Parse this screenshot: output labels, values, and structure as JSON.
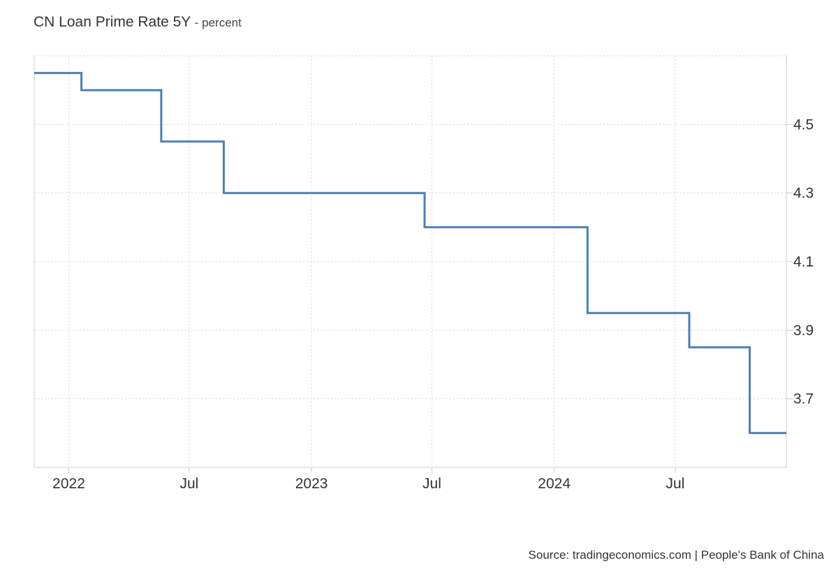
{
  "chart_data": {
    "type": "line",
    "step": true,
    "title": "CN Loan Prime Rate 5Y",
    "subtitle": "- percent",
    "xlabel": "",
    "ylabel": "",
    "x_ticks": [
      {
        "label": "2022",
        "date": "2022-01-01"
      },
      {
        "label": "Jul",
        "date": "2022-07-01"
      },
      {
        "label": "2023",
        "date": "2023-01-01"
      },
      {
        "label": "Jul",
        "date": "2023-07-01"
      },
      {
        "label": "2024",
        "date": "2024-01-01"
      },
      {
        "label": "Jul",
        "date": "2024-07-01"
      }
    ],
    "y_ticks": [
      3.7,
      3.9,
      4.1,
      4.3,
      4.5
    ],
    "xlim": [
      "2021-11-10",
      "2024-12-15"
    ],
    "ylim": [
      3.5,
      4.7
    ],
    "y_axis_position": "right",
    "grid": true,
    "series": [
      {
        "name": "",
        "color": "#4a7ebb",
        "points": [
          {
            "date": "2021-11-10",
            "value": 4.65
          },
          {
            "date": "2021-12-20",
            "value": 4.65
          },
          {
            "date": "2022-01-20",
            "value": 4.6
          },
          {
            "date": "2022-05-20",
            "value": 4.45
          },
          {
            "date": "2022-08-22",
            "value": 4.3
          },
          {
            "date": "2023-06-20",
            "value": 4.2
          },
          {
            "date": "2024-02-20",
            "value": 3.95
          },
          {
            "date": "2024-07-22",
            "value": 3.85
          },
          {
            "date": "2024-10-21",
            "value": 3.6
          },
          {
            "date": "2024-12-15",
            "value": 3.6
          }
        ]
      }
    ]
  },
  "source": "Source: tradingeconomics.com | People's Bank of China"
}
